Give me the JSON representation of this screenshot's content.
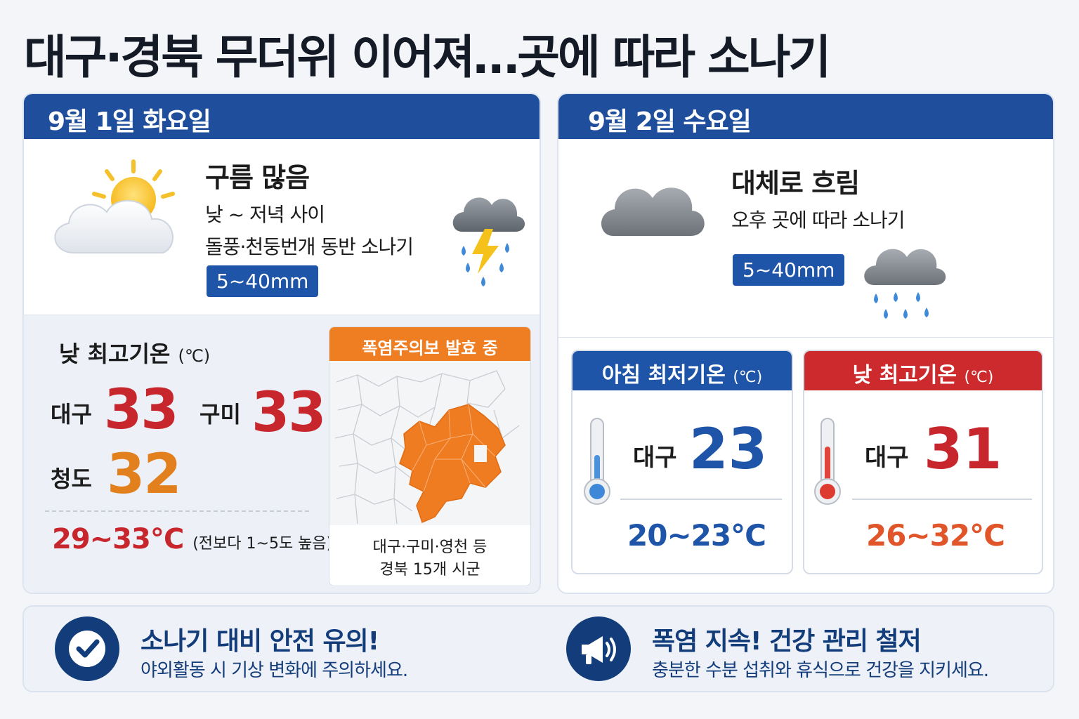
{
  "headline": "대구·경북 무더위 이어져…곳에 따라 소나기",
  "day1": {
    "date": "9월 1일 화요일",
    "condition": "구름 많음",
    "detail_line1": "낮 ~ 저녁 사이",
    "detail_line2": "돌풍·천둥번개 동반 소나기",
    "rain": "5~40mm",
    "icons": {
      "weather": "sun-behind-cloud-icon",
      "storm": "thunderstorm-rain-icon"
    },
    "high_label": "낮 최고기온",
    "high_unit": "(℃)",
    "highs": [
      {
        "city": "대구",
        "value": "33"
      },
      {
        "city": "구미",
        "value": "33"
      },
      {
        "city": "청도",
        "value": "32"
      }
    ],
    "range": "29~33℃",
    "range_note": "(전보다 1~5도 높음)",
    "heat": {
      "title": "폭염주의보 발효 중",
      "caption1": "대구·구미·영천 등",
      "caption2": "경북 15개 시군",
      "map_icon": "gyeongbuk-map-icon"
    }
  },
  "day2": {
    "date": "9월 2일 수요일",
    "condition": "대체로 흐림",
    "detail_line1": "오후 곳에 따라 소나기",
    "rain": "5~40mm",
    "icons": {
      "weather": "cloud-icon",
      "rain": "rain-cloud-icon"
    },
    "low_card": {
      "label": "아침 최저기온",
      "unit": "(℃)",
      "city": "대구",
      "value": "23",
      "range": "20~23℃",
      "icon": "cold-thermometer-icon"
    },
    "high_card": {
      "label": "낮 최고기온",
      "unit": "(℃)",
      "city": "대구",
      "value": "31",
      "range": "26~32℃",
      "icon": "hot-thermometer-icon"
    }
  },
  "tips": [
    {
      "icon": "checkmark-icon",
      "title": "소나기 대비 안전 유의!",
      "text": "야외활동 시 기상 변화에 주의하세요."
    },
    {
      "icon": "megaphone-icon",
      "title": "폭염 지속! 건강 관리 철저",
      "text": "충분한 수분 섭취와 휴식으로 건강을 지키세요."
    }
  ],
  "colors": {
    "header_blue": "#1f4e9c",
    "hot_red": "#c8262d",
    "warm_orange": "#e2801e",
    "cool_blue": "#1f55a8",
    "heat_orange": "#ef7d22"
  }
}
